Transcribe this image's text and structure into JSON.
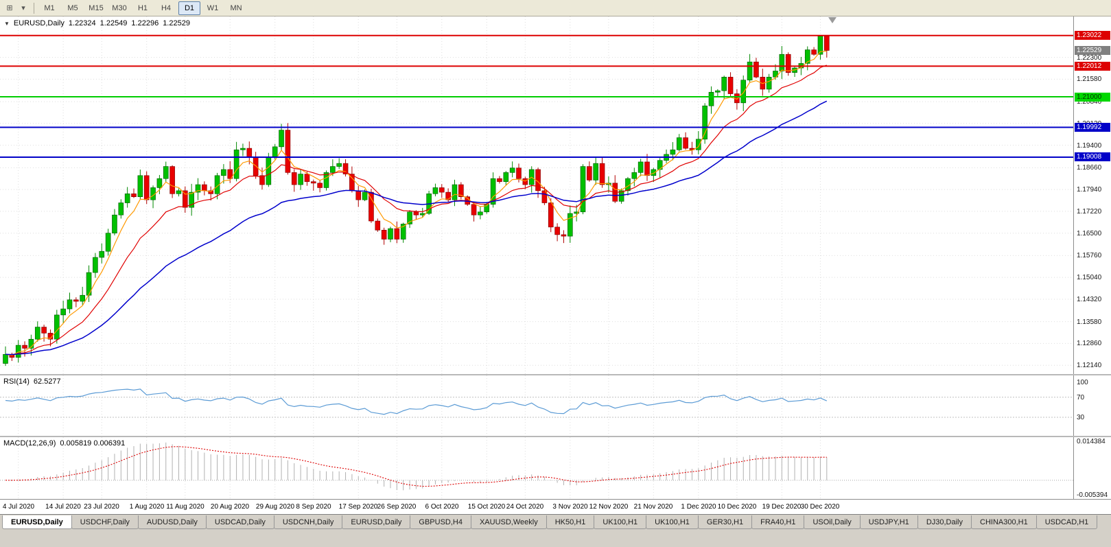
{
  "window": {
    "caret": "▼",
    "symbol_title": "EURUSD,Daily",
    "ohlc": {
      "open": "1.22324",
      "high": "1.22549",
      "low": "1.22296",
      "close": "1.22529"
    }
  },
  "toolbar": {
    "icons": [
      {
        "name": "chart-windows-icon",
        "glyph": "⊞"
      },
      {
        "name": "dropdown-caret-icon",
        "glyph": "▾"
      }
    ],
    "timeframes": [
      {
        "label": "M1",
        "active": false
      },
      {
        "label": "M5",
        "active": false
      },
      {
        "label": "M15",
        "active": false
      },
      {
        "label": "M30",
        "active": false
      },
      {
        "label": "H1",
        "active": false
      },
      {
        "label": "H4",
        "active": false
      },
      {
        "label": "D1",
        "active": true
      },
      {
        "label": "W1",
        "active": false
      },
      {
        "label": "MN",
        "active": false
      }
    ]
  },
  "price_axis": {
    "ticks": [
      "1.22300",
      "1.21580",
      "1.20840",
      "1.20120",
      "1.19400",
      "1.18660",
      "1.17940",
      "1.17220",
      "1.16500",
      "1.15760",
      "1.15040",
      "1.14320",
      "1.13580",
      "1.12860",
      "1.12140"
    ],
    "badges": [
      {
        "text": "1.23022",
        "price": 1.23022,
        "bg": "#dd0000",
        "fg": "#ffffff"
      },
      {
        "text": "1.22529",
        "price": 1.22529,
        "bg": "#808080",
        "fg": "#ffffff"
      },
      {
        "text": "1.22012",
        "price": 1.22012,
        "bg": "#dd0000",
        "fg": "#ffffff"
      },
      {
        "text": "1.21000",
        "price": 1.21,
        "bg": "#00d800",
        "fg": "#003300"
      },
      {
        "text": "1.19992",
        "price": 1.19992,
        "bg": "#0000c8",
        "fg": "#ffffff"
      },
      {
        "text": "1.19008",
        "price": 1.19008,
        "bg": "#0000c8",
        "fg": "#ffffff"
      }
    ]
  },
  "hlines": [
    {
      "price": 1.23022,
      "color": "#dd0000"
    },
    {
      "price": 1.22012,
      "color": "#dd0000"
    },
    {
      "price": 1.21,
      "color": "#00cc00"
    },
    {
      "price": 1.19992,
      "color": "#0000c8"
    },
    {
      "price": 1.19008,
      "color": "#0000c8"
    }
  ],
  "rsi": {
    "label": "RSI(14)",
    "value": "62.5277",
    "color": "#5b9bd5",
    "ticks": [
      {
        "v": 100,
        "label": "100"
      },
      {
        "v": 70,
        "label": "70"
      },
      {
        "v": 30,
        "label": "30"
      }
    ],
    "levels": [
      70,
      30
    ]
  },
  "macd": {
    "label": "MACD(12,26,9)",
    "values": "0.005819 0.006391",
    "tick_top": {
      "v": 0.014384,
      "label": "0.014384"
    },
    "tick_bottom": {
      "v": -0.005394,
      "label": "-0.005394"
    },
    "histogram_color": "#b0b0b0",
    "signal_color": "#dd0000"
  },
  "date_axis": {
    "labels": [
      "4 Jul 2020",
      "14 Jul 2020",
      "23 Jul 2020",
      "1 Aug 2020",
      "11 Aug 2020",
      "20 Aug 2020",
      "29 Aug 2020",
      "8 Sep 2020",
      "17 Sep 2020",
      "26 Sep 2020",
      "6 Oct 2020",
      "15 Oct 2020",
      "24 Oct 2020",
      "3 Nov 2020",
      "12 Nov 2020",
      "21 Nov 2020",
      "1 Dec 2020",
      "10 Dec 2020",
      "19 Dec 2020",
      "30 Dec 2020"
    ],
    "bar_indices": [
      2,
      9,
      15,
      22,
      28,
      35,
      42,
      48,
      55,
      61,
      68,
      75,
      81,
      88,
      94,
      101,
      108,
      114,
      121,
      127
    ]
  },
  "tabs": [
    {
      "label": "EURUSD,Daily",
      "active": true
    },
    {
      "label": "USDCHF,Daily",
      "active": false
    },
    {
      "label": "AUDUSD,Daily",
      "active": false
    },
    {
      "label": "USDCAD,Daily",
      "active": false
    },
    {
      "label": "USDCNH,Daily",
      "active": false
    },
    {
      "label": "EURUSD,Daily",
      "active": false
    },
    {
      "label": "GBPUSD,H4",
      "active": false
    },
    {
      "label": "XAUUSD,Weekly",
      "active": false
    },
    {
      "label": "HK50,H1",
      "active": false
    },
    {
      "label": "UK100,H1",
      "active": false
    },
    {
      "label": "UK100,H1",
      "active": false
    },
    {
      "label": "GER30,H1",
      "active": false
    },
    {
      "label": "FRA40,H1",
      "active": false
    },
    {
      "label": "USOil,Daily",
      "active": false
    },
    {
      "label": "USDJPY,H1",
      "active": false
    },
    {
      "label": "DJ30,Daily",
      "active": false
    },
    {
      "label": "CHINA300,H1",
      "active": false
    },
    {
      "label": "USDCAD,H1",
      "active": false
    }
  ],
  "chart_data": {
    "type": "candlestick",
    "symbol": "EURUSD",
    "timeframe": "Daily",
    "title": "EURUSD,Daily 1.22324 1.22549 1.22296 1.22529",
    "ylim": [
      1.1185,
      1.2365
    ],
    "closes": [
      1.125,
      1.124,
      1.128,
      1.127,
      1.13,
      1.134,
      1.132,
      1.13,
      1.138,
      1.14,
      1.143,
      1.1425,
      1.1445,
      1.152,
      1.157,
      1.159,
      1.165,
      1.171,
      1.175,
      1.178,
      1.177,
      1.184,
      1.176,
      1.18,
      1.183,
      1.187,
      1.178,
      1.179,
      1.1735,
      1.1785,
      1.181,
      1.179,
      1.178,
      1.184,
      1.186,
      1.183,
      1.1925,
      1.193,
      1.19,
      1.184,
      1.181,
      1.19,
      1.1935,
      1.199,
      1.185,
      1.181,
      1.1845,
      1.182,
      1.1815,
      1.18,
      1.185,
      1.187,
      1.188,
      1.1845,
      1.179,
      1.176,
      1.1785,
      1.169,
      1.166,
      1.163,
      1.1665,
      1.163,
      1.168,
      1.172,
      1.171,
      1.1715,
      1.178,
      1.18,
      1.1785,
      1.176,
      1.181,
      1.177,
      1.1745,
      1.171,
      1.172,
      1.1745,
      1.183,
      1.182,
      1.185,
      1.1865,
      1.183,
      1.181,
      1.186,
      1.179,
      1.175,
      1.167,
      1.1645,
      1.164,
      1.1715,
      1.172,
      1.187,
      1.1825,
      1.188,
      1.181,
      1.1815,
      1.1755,
      1.179,
      1.183,
      1.185,
      1.1885,
      1.184,
      1.186,
      1.189,
      1.191,
      1.1925,
      1.1965,
      1.193,
      1.1925,
      1.196,
      1.207,
      1.2115,
      1.212,
      1.2165,
      1.211,
      1.208,
      1.2155,
      1.2215,
      1.2165,
      1.2125,
      1.2165,
      1.2185,
      1.224,
      1.218,
      1.2195,
      1.221,
      1.2255,
      1.224,
      1.23,
      1.22529
    ],
    "ma_periods": {
      "fast": 5,
      "medium": 13,
      "slow": 34
    },
    "colors": {
      "up_fill": "#00c000",
      "up_stroke": "#005500",
      "up_wick": "#008800",
      "down_fill": "#e80000",
      "down_stroke": "#7a0000",
      "down_wick": "#b00000",
      "ma_fast": "#ff9900",
      "ma_medium": "#e00000",
      "ma_slow": "#0000cc",
      "grid": "#dedede"
    }
  }
}
